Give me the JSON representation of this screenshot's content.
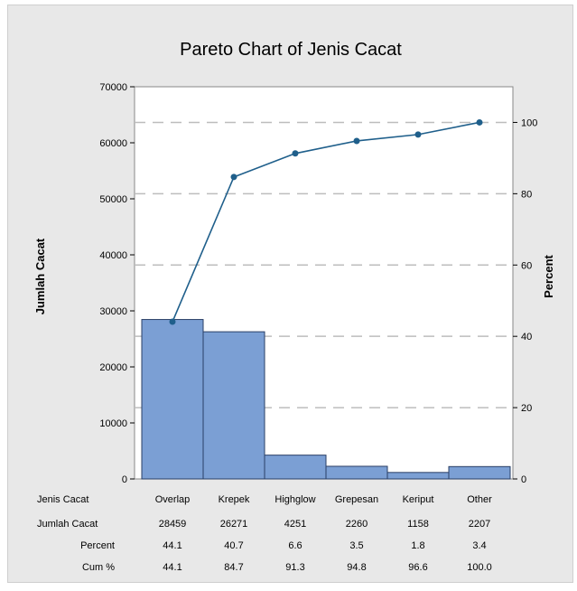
{
  "chart_data": {
    "type": "bar",
    "title": "Pareto Chart of Jenis Cacat",
    "ylabel": "Jumlah Cacat",
    "y2label": "Percent",
    "ylim": [
      0,
      70000
    ],
    "y2lim": [
      0,
      110
    ],
    "yticks": [
      "0",
      "10000",
      "20000",
      "30000",
      "40000",
      "50000",
      "60000",
      "70000"
    ],
    "y2ticks": [
      "0",
      "20",
      "40",
      "60",
      "80",
      "100"
    ],
    "categories": [
      "Overlap",
      "Krepek",
      "Highglow",
      "Grepesan",
      "Keriput",
      "Other"
    ],
    "values": [
      28459,
      26271,
      4251,
      2260,
      1158,
      2207
    ],
    "cumulative_percent": [
      44.1,
      84.7,
      91.3,
      94.8,
      96.6,
      100.0
    ],
    "grid": "dashed horizontal at right-axis ticks",
    "bar_color": "#7b9fd4",
    "line_color": "#1f5f8b",
    "table": {
      "headers": [
        "Jenis Cacat",
        "Jumlah Cacat",
        "Percent",
        "Cum %"
      ],
      "rows": [
        [
          "Overlap",
          "Krepek",
          "Highglow",
          "Grepesan",
          "Keriput",
          "Other"
        ],
        [
          "28459",
          "26271",
          "4251",
          "2260",
          "1158",
          "2207"
        ],
        [
          "44.1",
          "40.7",
          "6.6",
          "3.5",
          "1.8",
          "3.4"
        ],
        [
          "44.1",
          "84.7",
          "91.3",
          "94.8",
          "96.6",
          "100.0"
        ]
      ]
    }
  }
}
